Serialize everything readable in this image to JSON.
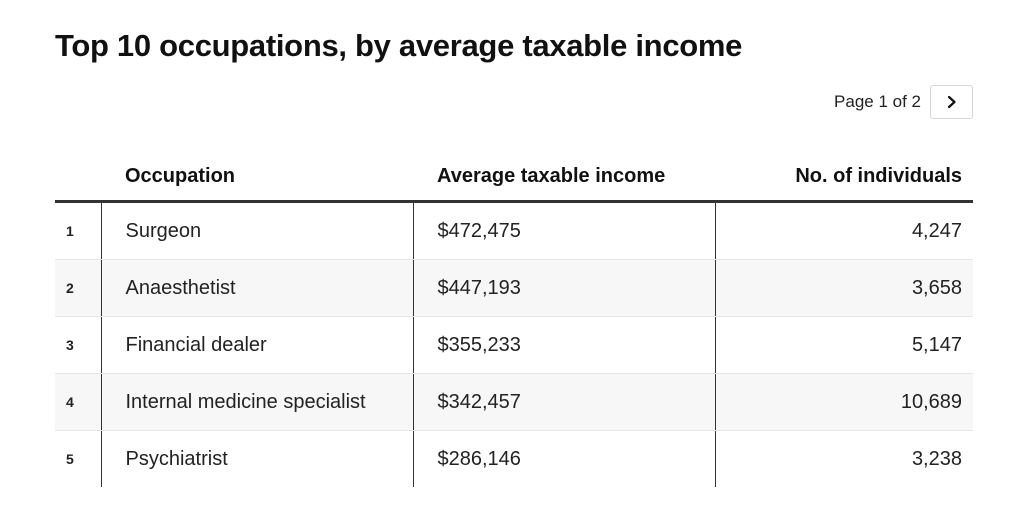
{
  "title": "Top 10 occupations, by average taxable income",
  "pagination": {
    "label": "Page 1 of 2",
    "next_icon": "chevron-right-icon"
  },
  "table": {
    "headers": {
      "rank": "",
      "occupation": "Occupation",
      "income": "Average taxable income",
      "individuals": "No. of individuals"
    },
    "rows": [
      {
        "rank": "1",
        "occupation": "Surgeon",
        "income": "$472,475",
        "individuals": "4,247"
      },
      {
        "rank": "2",
        "occupation": "Anaesthetist",
        "income": "$447,193",
        "individuals": "3,658"
      },
      {
        "rank": "3",
        "occupation": "Financial dealer",
        "income": "$355,233",
        "individuals": "5,147"
      },
      {
        "rank": "4",
        "occupation": "Internal medicine specialist",
        "income": "$342,457",
        "individuals": "10,689"
      },
      {
        "rank": "5",
        "occupation": "Psychiatrist",
        "income": "$286,146",
        "individuals": "3,238"
      }
    ]
  },
  "colors": {
    "text": "#111111",
    "rule": "#333333",
    "stripe": "#f7f7f7"
  }
}
